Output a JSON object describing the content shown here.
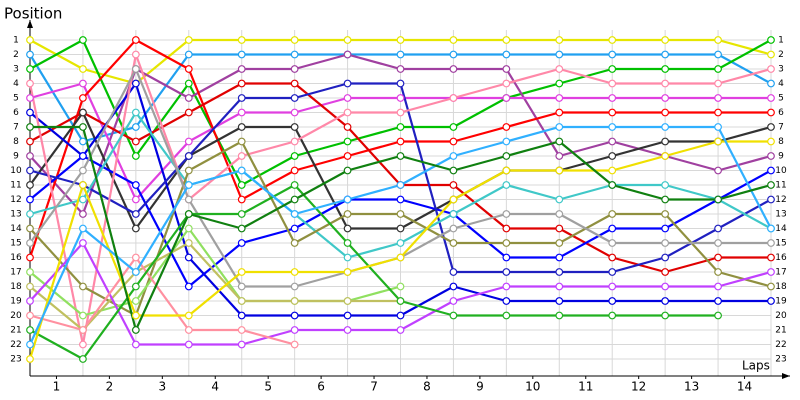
{
  "chart_data": {
    "type": "line",
    "title": "Position",
    "x_label": "Laps",
    "x": [
      0,
      1,
      2,
      3,
      4,
      5,
      6,
      7,
      8,
      9,
      10,
      11,
      12,
      13,
      14
    ],
    "xlim": [
      0,
      14
    ],
    "xticks": [
      {
        "value": 0.5,
        "label": "1"
      },
      {
        "value": 1.5,
        "label": "2"
      },
      {
        "value": 2.5,
        "label": "3"
      },
      {
        "value": 3.5,
        "label": "4"
      },
      {
        "value": 4.5,
        "label": "5"
      },
      {
        "value": 5.5,
        "label": "6"
      },
      {
        "value": 6.5,
        "label": "7"
      },
      {
        "value": 7.5,
        "label": "8"
      },
      {
        "value": 8.5,
        "label": "9"
      },
      {
        "value": 9.5,
        "label": "10"
      },
      {
        "value": 10.5,
        "label": "11"
      },
      {
        "value": 11.5,
        "label": "12"
      },
      {
        "value": 12.5,
        "label": "13"
      },
      {
        "value": 13.5,
        "label": "14"
      }
    ],
    "ylim": [
      0,
      24
    ],
    "y_inverted": true,
    "yticks": [
      1,
      2,
      3,
      4,
      5,
      6,
      7,
      8,
      9,
      10,
      11,
      12,
      13,
      14,
      15,
      16,
      17,
      18,
      19,
      20,
      21,
      22,
      23
    ],
    "grid": true,
    "series": [
      {
        "color": "#e6e600",
        "values": [
          1,
          3,
          4,
          1,
          1,
          1,
          1,
          1,
          1,
          1,
          1,
          1,
          1,
          1,
          2
        ]
      },
      {
        "color": "#20a0f0",
        "values": [
          2,
          8,
          7,
          2,
          2,
          2,
          2,
          2,
          2,
          2,
          2,
          2,
          2,
          2,
          4
        ]
      },
      {
        "color": "#00c000",
        "values": [
          3,
          1,
          9,
          4,
          11,
          9,
          8,
          7,
          7,
          5,
          4,
          3,
          3,
          3,
          1
        ]
      },
      {
        "color": "#a040a0",
        "values": [
          9,
          13,
          3,
          5,
          3,
          3,
          2,
          3,
          3,
          3,
          9,
          8,
          9,
          10,
          9
        ]
      },
      {
        "color": "#e040e0",
        "values": [
          5,
          4,
          12,
          8,
          6,
          6,
          5,
          5,
          5,
          5,
          5,
          5,
          5,
          5,
          5
        ]
      },
      {
        "color": "#ff0000",
        "values": [
          16,
          5,
          1,
          3,
          12,
          10,
          9,
          8,
          8,
          7,
          6,
          6,
          6,
          6,
          6
        ]
      },
      {
        "color": "#e00000",
        "values": [
          8,
          6,
          8,
          6,
          4,
          4,
          7,
          11,
          11,
          14,
          14,
          16,
          17,
          16,
          16
        ]
      },
      {
        "color": "#333333",
        "values": [
          11,
          6,
          14,
          9,
          7,
          7,
          14,
          14,
          12,
          10,
          10,
          9,
          8,
          8,
          7
        ]
      },
      {
        "color": "#0000e0",
        "values": [
          6,
          9,
          4,
          16,
          20,
          20,
          20,
          20,
          18,
          19,
          19,
          19,
          19,
          19,
          19
        ]
      },
      {
        "color": "#0000ff",
        "values": [
          12,
          9,
          11,
          18,
          15,
          14,
          12,
          12,
          13,
          16,
          16,
          14,
          14,
          12,
          10
        ]
      },
      {
        "color": "#2020c0",
        "values": [
          10,
          11,
          13,
          9,
          5,
          5,
          4,
          4,
          17,
          17,
          17,
          17,
          16,
          14,
          12
        ]
      },
      {
        "color": "#ff88a8",
        "values": [
          4,
          22,
          2,
          12,
          9,
          8,
          6,
          6,
          5,
          4,
          3,
          4,
          4,
          4,
          3
        ]
      },
      {
        "color": "#40c8c8",
        "values": [
          13,
          12,
          6,
          11,
          10,
          13,
          16,
          15,
          13,
          11,
          12,
          11,
          11,
          12,
          14
        ]
      },
      {
        "color": "#909040",
        "values": [
          14,
          18,
          20,
          10,
          8,
          15,
          13,
          13,
          15,
          15,
          15,
          13,
          13,
          17,
          18
        ]
      },
      {
        "color": "#a0a0a0",
        "values": [
          15,
          10,
          3,
          12,
          18,
          18,
          17,
          16,
          14,
          13,
          13,
          15,
          15,
          15,
          15
        ]
      },
      {
        "color": "#90e060",
        "values": [
          17,
          20,
          19,
          14,
          19,
          19,
          19,
          18,
          null,
          null,
          null,
          null,
          null,
          null,
          null
        ]
      },
      {
        "color": "#c0c060",
        "values": [
          18,
          21,
          17,
          15,
          19,
          19,
          19,
          19,
          null,
          null,
          null,
          null,
          null,
          null,
          null
        ]
      },
      {
        "color": "#c040ff",
        "values": [
          19,
          15,
          22,
          22,
          22,
          21,
          21,
          21,
          19,
          18,
          18,
          18,
          18,
          18,
          17
        ]
      },
      {
        "color": "#ff90a0",
        "values": [
          20,
          21,
          16,
          21,
          21,
          22,
          null,
          null,
          null,
          null,
          null,
          null,
          null,
          null,
          null
        ]
      },
      {
        "color": "#20b020",
        "values": [
          21,
          23,
          18,
          13,
          13,
          11,
          15,
          19,
          20,
          20,
          20,
          20,
          20,
          20,
          null
        ]
      },
      {
        "color": "#f0e000",
        "values": [
          23,
          11,
          20,
          20,
          17,
          17,
          17,
          16,
          12,
          10,
          10,
          10,
          9,
          8,
          8
        ]
      },
      {
        "color": "#30b0ff",
        "values": [
          22,
          14,
          17,
          11,
          10,
          13,
          12,
          11,
          9,
          8,
          7,
          7,
          7,
          7,
          14
        ]
      },
      {
        "color": "#108010",
        "values": [
          7,
          7,
          21,
          13,
          14,
          12,
          10,
          9,
          10,
          9,
          8,
          11,
          12,
          12,
          11
        ]
      }
    ]
  }
}
